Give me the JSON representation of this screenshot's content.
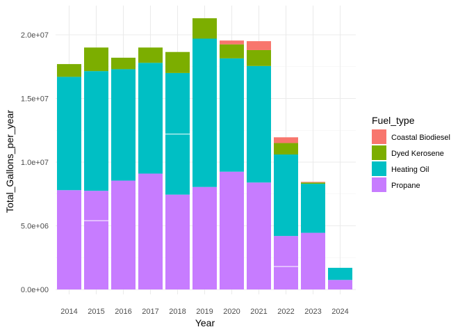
{
  "chart_data": {
    "type": "bar",
    "stacked": true,
    "xlabel": "Year",
    "ylabel": "Total_Gallons_per_year",
    "categories": [
      "2014",
      "2015",
      "2016",
      "2017",
      "2018",
      "2019",
      "2020",
      "2021",
      "2022",
      "2023",
      "2024"
    ],
    "ylim": [
      0,
      21500000
    ],
    "yticks": [
      0,
      5000000,
      10000000,
      15000000,
      20000000
    ],
    "ytick_labels": [
      "0.0e+00",
      "5.0e+06",
      "1.0e+07",
      "1.5e+07",
      "2.0e+07"
    ],
    "grid": true,
    "legend": {
      "title": "Fuel_type",
      "position": "right"
    },
    "series": [
      {
        "name": "Propane",
        "color": "#C77CFF",
        "values": [
          7800000,
          7750000,
          8550000,
          9100000,
          7450000,
          8050000,
          9250000,
          8400000,
          4200000,
          4450000,
          750000
        ]
      },
      {
        "name": "Heating Oil",
        "color": "#00BFC4",
        "values": [
          8900000,
          9400000,
          8750000,
          8700000,
          9550000,
          11650000,
          8900000,
          9150000,
          6400000,
          3850000,
          950000
        ]
      },
      {
        "name": "Dyed Kerosene",
        "color": "#7CAE00",
        "values": [
          1000000,
          1850000,
          900000,
          1200000,
          1650000,
          1600000,
          1100000,
          1250000,
          900000,
          100000,
          0
        ]
      },
      {
        "name": "Coastal Biodiesel",
        "color": "#F8766D",
        "values": [
          0,
          0,
          0,
          0,
          0,
          0,
          300000,
          700000,
          450000,
          50000,
          0
        ]
      }
    ],
    "legend_order": [
      "Coastal Biodiesel",
      "Dyed Kerosene",
      "Heating Oil",
      "Propane"
    ],
    "divider_lines": [
      {
        "category": "2015",
        "y": 5400000
      },
      {
        "category": "2018",
        "y": 12200000
      },
      {
        "category": "2022",
        "y": 1800000
      }
    ]
  }
}
